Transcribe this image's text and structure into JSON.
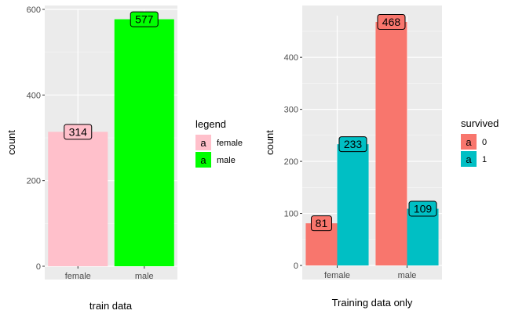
{
  "chart_data": [
    {
      "type": "bar",
      "categories": [
        "female",
        "male"
      ],
      "values": [
        314,
        577
      ],
      "data_labels": [
        "314",
        "577"
      ],
      "colors": [
        "#FFC0CB",
        "#00FF00"
      ],
      "xlabel": "train data",
      "ylabel": "count",
      "ylim": [
        0,
        600
      ],
      "yticks": [
        0,
        200,
        400,
        600
      ],
      "grid": true,
      "legend": {
        "title": "legend",
        "placement": "right",
        "key_glyph": "a",
        "entries": [
          {
            "label": "female",
            "color": "#FFC0CB"
          },
          {
            "label": "male",
            "color": "#00FF00"
          }
        ]
      }
    },
    {
      "type": "bar",
      "barmode": "dodge",
      "categories": [
        "female",
        "male"
      ],
      "series": [
        {
          "name": "0",
          "color": "#F8766D",
          "values": [
            81,
            468
          ]
        },
        {
          "name": "1",
          "color": "#00BFC4",
          "values": [
            233,
            109
          ]
        }
      ],
      "xlabel": "Training data only",
      "ylabel": "count",
      "ylim": [
        0,
        480
      ],
      "yticks": [
        0,
        100,
        200,
        300,
        400
      ],
      "grid": true,
      "legend": {
        "title": "survived",
        "placement": "right",
        "key_glyph": "a",
        "entries": [
          {
            "label": "0",
            "color": "#F8766D"
          },
          {
            "label": "1",
            "color": "#00BFC4"
          }
        ]
      }
    }
  ]
}
